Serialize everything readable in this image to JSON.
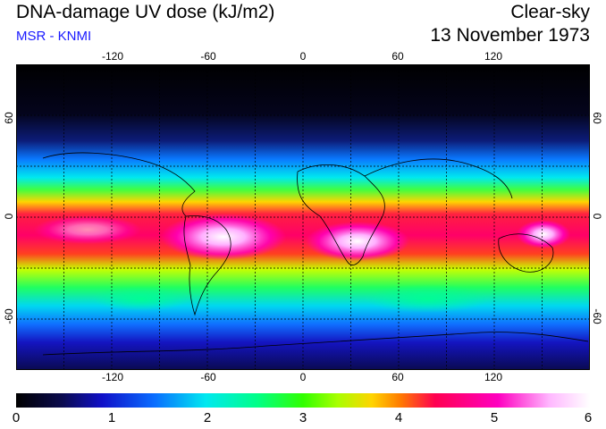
{
  "header": {
    "title": "DNA-damage UV dose (kJ/m2)",
    "source": "MSR - KNMI",
    "condition": "Clear-sky",
    "date": "13 November 1973"
  },
  "colors": {
    "source_text": "#1a1aff",
    "grid_line": "#000000",
    "coast_line": "#000000",
    "scale": [
      "#000000",
      "#0b0b4e",
      "#1010c8",
      "#0a6cff",
      "#00e8f0",
      "#00ff88",
      "#30ff00",
      "#a8ff00",
      "#ffd400",
      "#ff7a00",
      "#ff0050",
      "#ff00c0",
      "#ffb8ff",
      "#ffffff"
    ]
  },
  "map": {
    "lon_ticks": [
      "-120",
      "-60",
      "0",
      "60",
      "120"
    ],
    "lat_ticks": [
      "60",
      "0",
      "-60"
    ],
    "lon_range": [
      -180,
      180
    ],
    "lat_range": [
      -90,
      90
    ],
    "grid_lon": [
      -150,
      -120,
      -90,
      -60,
      -30,
      0,
      30,
      60,
      90,
      120,
      150
    ],
    "grid_lat": [
      60,
      30,
      0,
      -30,
      -60
    ]
  },
  "colorbar": {
    "labels": [
      "0",
      "1",
      "2",
      "3",
      "4",
      "5",
      "6"
    ],
    "min": 0,
    "max": 6
  }
}
